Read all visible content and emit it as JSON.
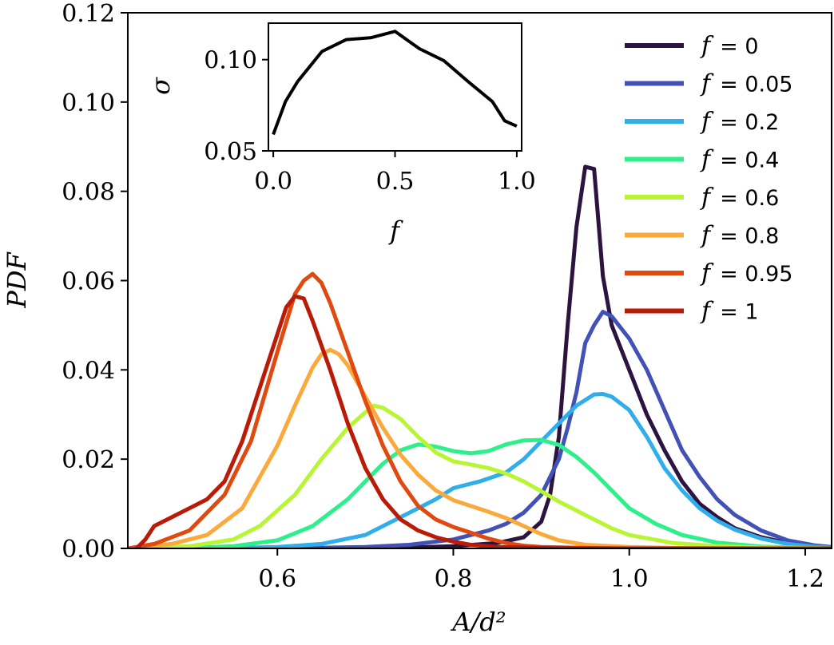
{
  "chart_data": {
    "main": {
      "type": "line",
      "xlabel": "A/d²",
      "ylabel": "PDF",
      "xlim": [
        0.43,
        1.23
      ],
      "ylim": [
        0,
        0.12
      ],
      "xticks": [
        0.6,
        0.8,
        1.0,
        1.2
      ],
      "xtick_labels": [
        "0.6",
        "0.8",
        "1.0",
        "1.2"
      ],
      "yticks": [
        0.0,
        0.02,
        0.04,
        0.06,
        0.08,
        0.1,
        0.12
      ],
      "ytick_labels": [
        "0.00",
        "0.02",
        "0.04",
        "0.06",
        "0.08",
        "0.10",
        "0.12"
      ],
      "legend_position": "top-right",
      "series": [
        {
          "name": "f = 0",
          "label_f": "f",
          "label_value": "= 0",
          "color": "#2d1440",
          "x": [
            0.43,
            0.6,
            0.7,
            0.75,
            0.8,
            0.85,
            0.88,
            0.9,
            0.91,
            0.92,
            0.93,
            0.94,
            0.95,
            0.96,
            0.97,
            0.98,
            1.0,
            1.02,
            1.04,
            1.06,
            1.08,
            1.1,
            1.12,
            1.15,
            1.18,
            1.21,
            1.23
          ],
          "y": [
            0,
            0,
            0.0001,
            0.0002,
            0.0005,
            0.0012,
            0.0025,
            0.006,
            0.012,
            0.025,
            0.05,
            0.072,
            0.0855,
            0.085,
            0.061,
            0.05,
            0.04,
            0.03,
            0.022,
            0.015,
            0.01,
            0.007,
            0.0045,
            0.0025,
            0.0012,
            0.0005,
            0.0002
          ]
        },
        {
          "name": "f = 0.05",
          "label_f": "f",
          "label_value": "= 0.05",
          "color": "#4151b5",
          "x": [
            0.43,
            0.6,
            0.7,
            0.75,
            0.8,
            0.84,
            0.86,
            0.88,
            0.9,
            0.92,
            0.93,
            0.94,
            0.95,
            0.96,
            0.97,
            0.98,
            1.0,
            1.02,
            1.04,
            1.06,
            1.08,
            1.1,
            1.12,
            1.15,
            1.18,
            1.21,
            1.23
          ],
          "y": [
            0,
            0,
            0.0003,
            0.0008,
            0.002,
            0.004,
            0.0055,
            0.008,
            0.012,
            0.02,
            0.027,
            0.035,
            0.046,
            0.05,
            0.053,
            0.052,
            0.047,
            0.04,
            0.031,
            0.022,
            0.016,
            0.011,
            0.0075,
            0.004,
            0.0018,
            0.0007,
            0.0003
          ]
        },
        {
          "name": "f = 0.2",
          "label_f": "f",
          "label_value": "= 0.2",
          "color": "#30aeea",
          "x": [
            0.43,
            0.55,
            0.6,
            0.65,
            0.7,
            0.74,
            0.78,
            0.8,
            0.83,
            0.86,
            0.88,
            0.9,
            0.92,
            0.94,
            0.96,
            0.97,
            0.98,
            1.0,
            1.02,
            1.04,
            1.06,
            1.08,
            1.1,
            1.12,
            1.15,
            1.18,
            1.21,
            1.23
          ],
          "y": [
            0,
            0.0001,
            0.0003,
            0.001,
            0.003,
            0.007,
            0.011,
            0.0135,
            0.015,
            0.017,
            0.02,
            0.024,
            0.028,
            0.032,
            0.0345,
            0.0346,
            0.034,
            0.031,
            0.025,
            0.018,
            0.013,
            0.009,
            0.0062,
            0.0042,
            0.0022,
            0.001,
            0.0004,
            0.0002
          ]
        },
        {
          "name": "f = 0.4",
          "label_f": "f",
          "label_value": "= 0.4",
          "color": "#2ef08a",
          "x": [
            0.43,
            0.5,
            0.55,
            0.6,
            0.64,
            0.68,
            0.7,
            0.72,
            0.74,
            0.76,
            0.78,
            0.8,
            0.82,
            0.84,
            0.86,
            0.88,
            0.9,
            0.92,
            0.94,
            0.96,
            0.98,
            1.0,
            1.03,
            1.06,
            1.1,
            1.15,
            1.2,
            1.23
          ],
          "y": [
            0,
            0.0001,
            0.0005,
            0.0018,
            0.005,
            0.011,
            0.015,
            0.019,
            0.022,
            0.0233,
            0.0228,
            0.0218,
            0.0213,
            0.0218,
            0.0233,
            0.0242,
            0.0243,
            0.0232,
            0.0205,
            0.017,
            0.013,
            0.009,
            0.0055,
            0.003,
            0.0013,
            0.0004,
            0.0001,
            0
          ]
        },
        {
          "name": "f = 0.6",
          "label_f": "f",
          "label_value": "= 0.6",
          "color": "#b8f535",
          "x": [
            0.43,
            0.5,
            0.55,
            0.58,
            0.62,
            0.65,
            0.68,
            0.7,
            0.71,
            0.72,
            0.74,
            0.76,
            0.78,
            0.8,
            0.82,
            0.84,
            0.86,
            0.88,
            0.9,
            0.92,
            0.95,
            0.98,
            1.0,
            1.05,
            1.1,
            1.15,
            1.2,
            1.23
          ],
          "y": [
            0,
            0.0005,
            0.002,
            0.005,
            0.012,
            0.02,
            0.027,
            0.0305,
            0.032,
            0.0315,
            0.029,
            0.025,
            0.0215,
            0.0195,
            0.0188,
            0.018,
            0.0168,
            0.015,
            0.0128,
            0.0105,
            0.0075,
            0.0045,
            0.003,
            0.0012,
            0.0005,
            0.0002,
            0.0001,
            0
          ]
        },
        {
          "name": "f = 0.8",
          "label_f": "f",
          "label_value": "= 0.8",
          "color": "#fba93a",
          "x": [
            0.43,
            0.48,
            0.52,
            0.56,
            0.6,
            0.62,
            0.64,
            0.65,
            0.66,
            0.67,
            0.68,
            0.7,
            0.72,
            0.74,
            0.76,
            0.78,
            0.8,
            0.82,
            0.84,
            0.86,
            0.88,
            0.9,
            0.92,
            0.95,
            1.0,
            1.05,
            1.1,
            1.23
          ],
          "y": [
            0,
            0.001,
            0.003,
            0.009,
            0.023,
            0.032,
            0.0405,
            0.0435,
            0.0445,
            0.0435,
            0.041,
            0.034,
            0.027,
            0.021,
            0.0165,
            0.013,
            0.0108,
            0.0095,
            0.0082,
            0.0068,
            0.005,
            0.0032,
            0.0018,
            0.0008,
            0.0003,
            0.0001,
            0,
            0
          ]
        },
        {
          "name": "f = 0.95",
          "label_f": "f",
          "label_value": "= 0.95",
          "color": "#e04a10",
          "x": [
            0.43,
            0.46,
            0.5,
            0.54,
            0.57,
            0.6,
            0.62,
            0.63,
            0.64,
            0.65,
            0.66,
            0.68,
            0.7,
            0.72,
            0.74,
            0.76,
            0.78,
            0.8,
            0.82,
            0.84,
            0.86,
            0.88,
            0.9,
            0.95,
            1.0,
            1.05,
            1.23
          ],
          "y": [
            0,
            0.001,
            0.004,
            0.012,
            0.024,
            0.044,
            0.057,
            0.06,
            0.0615,
            0.0595,
            0.055,
            0.044,
            0.033,
            0.023,
            0.015,
            0.0095,
            0.0065,
            0.0048,
            0.0035,
            0.0022,
            0.0012,
            0.0006,
            0.0003,
            0.0001,
            0,
            0,
            0
          ]
        },
        {
          "name": "f = 1",
          "label_f": "f",
          "label_value": "= 1",
          "color": "#b91b07",
          "x": [
            0.44,
            0.45,
            0.46,
            0.48,
            0.5,
            0.52,
            0.54,
            0.56,
            0.58,
            0.6,
            0.61,
            0.62,
            0.63,
            0.64,
            0.66,
            0.68,
            0.7,
            0.72,
            0.74,
            0.76,
            0.78,
            0.8,
            0.82,
            0.85,
            0.9,
            0.95,
            1.23
          ],
          "y": [
            0,
            0.002,
            0.005,
            0.007,
            0.009,
            0.011,
            0.015,
            0.024,
            0.036,
            0.048,
            0.054,
            0.0565,
            0.056,
            0.051,
            0.04,
            0.028,
            0.018,
            0.011,
            0.0065,
            0.004,
            0.0025,
            0.0015,
            0.0008,
            0.0003,
            0.0001,
            0,
            0
          ]
        }
      ]
    },
    "inset": {
      "type": "line",
      "xlabel": "f",
      "ylabel": "σ",
      "xlim": [
        -0.02,
        1.02
      ],
      "ylim": [
        0.05,
        0.12
      ],
      "xticks": [
        0.0,
        0.5,
        1.0
      ],
      "xtick_labels": [
        "0.0",
        "0.5",
        "1.0"
      ],
      "yticks": [
        0.05,
        0.1
      ],
      "ytick_labels": [
        "0.05",
        "0.10"
      ],
      "series": [
        {
          "name": "σ",
          "color": "#000000",
          "x": [
            0,
            0.05,
            0.1,
            0.2,
            0.3,
            0.4,
            0.5,
            0.6,
            0.7,
            0.8,
            0.9,
            0.95,
            1.0
          ],
          "y": [
            0.059,
            0.077,
            0.088,
            0.1045,
            0.111,
            0.112,
            0.1155,
            0.106,
            0.0995,
            0.088,
            0.077,
            0.0665,
            0.0635
          ]
        }
      ]
    }
  }
}
